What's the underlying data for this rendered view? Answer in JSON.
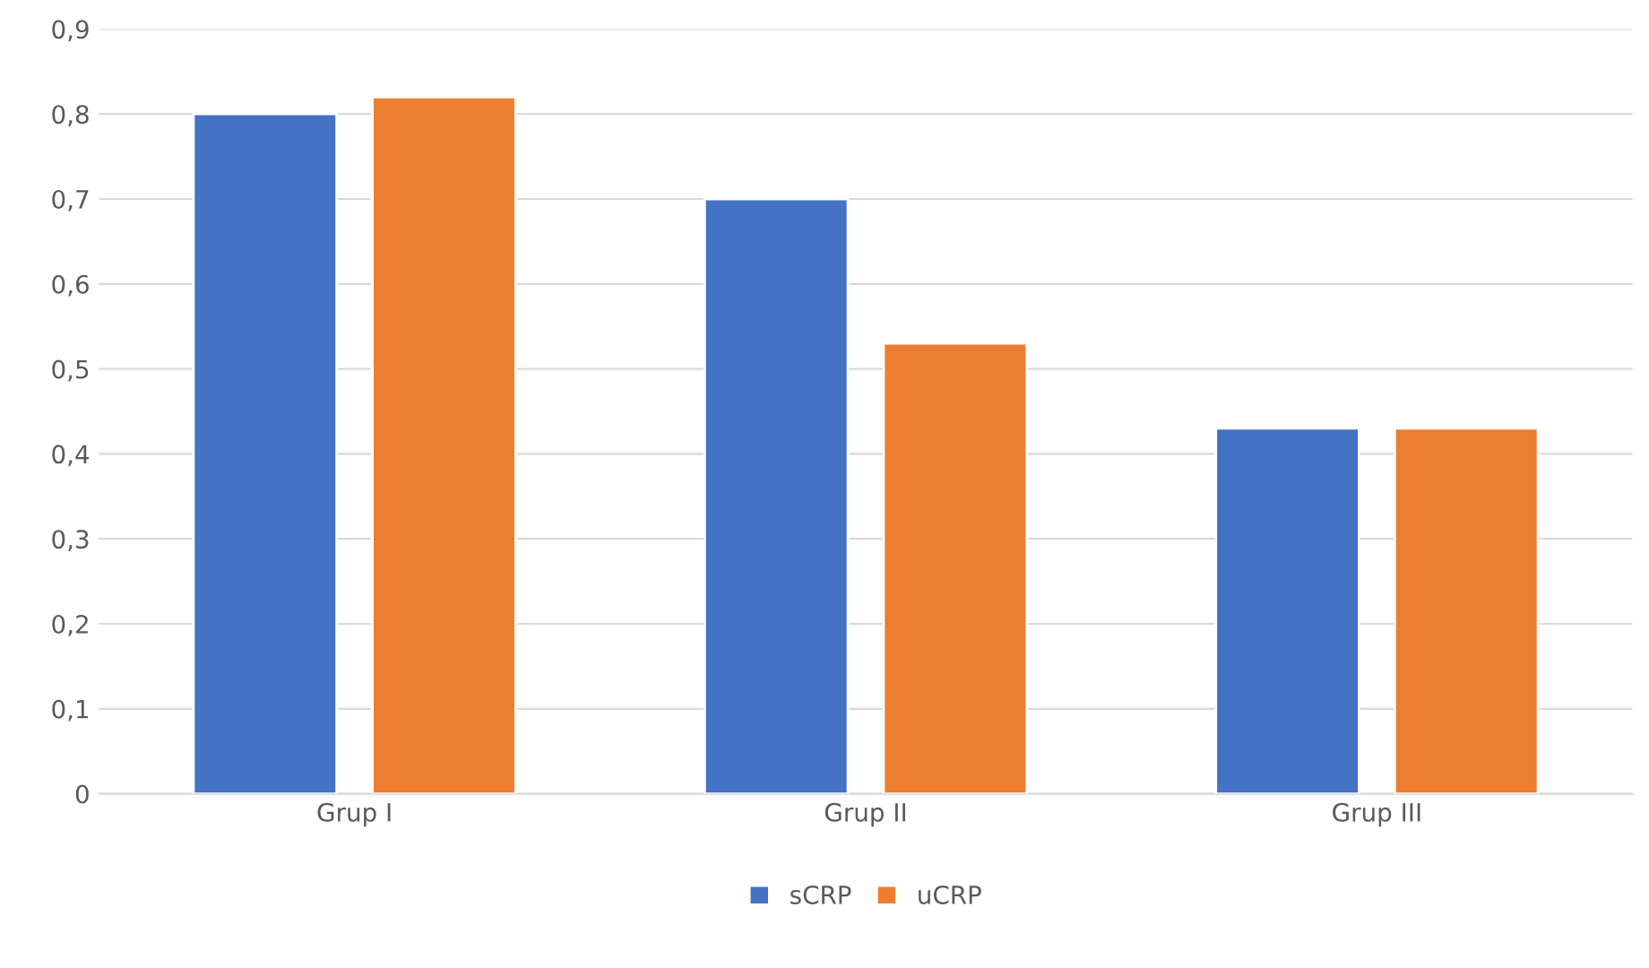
{
  "chart_data": {
    "type": "bar",
    "categories": [
      "Grup I",
      "Grup II",
      "Grup III"
    ],
    "series": [
      {
        "name": "sCRP",
        "color": "#4472c4",
        "values": [
          0.8,
          0.7,
          0.43
        ]
      },
      {
        "name": "uCRP",
        "color": "#ed7d31",
        "values": [
          0.82,
          0.53,
          0.43
        ]
      }
    ],
    "ylim": [
      0,
      0.9
    ],
    "yticks": [
      0,
      {
        "value": 0.1,
        "label": "0,1"
      },
      {
        "value": 0.2,
        "label": "0,2"
      },
      {
        "value": 0.3,
        "label": "0,3"
      },
      {
        "value": 0.4,
        "label": "0,4"
      },
      {
        "value": 0.5,
        "label": "0,5"
      },
      {
        "value": 0.6,
        "label": "0,6"
      },
      {
        "value": 0.7,
        "label": "0,7"
      },
      {
        "value": 0.8,
        "label": "0,8"
      },
      {
        "value": 0.9,
        "label": "0,9"
      }
    ],
    "grid": "y",
    "legend": "bottom"
  }
}
